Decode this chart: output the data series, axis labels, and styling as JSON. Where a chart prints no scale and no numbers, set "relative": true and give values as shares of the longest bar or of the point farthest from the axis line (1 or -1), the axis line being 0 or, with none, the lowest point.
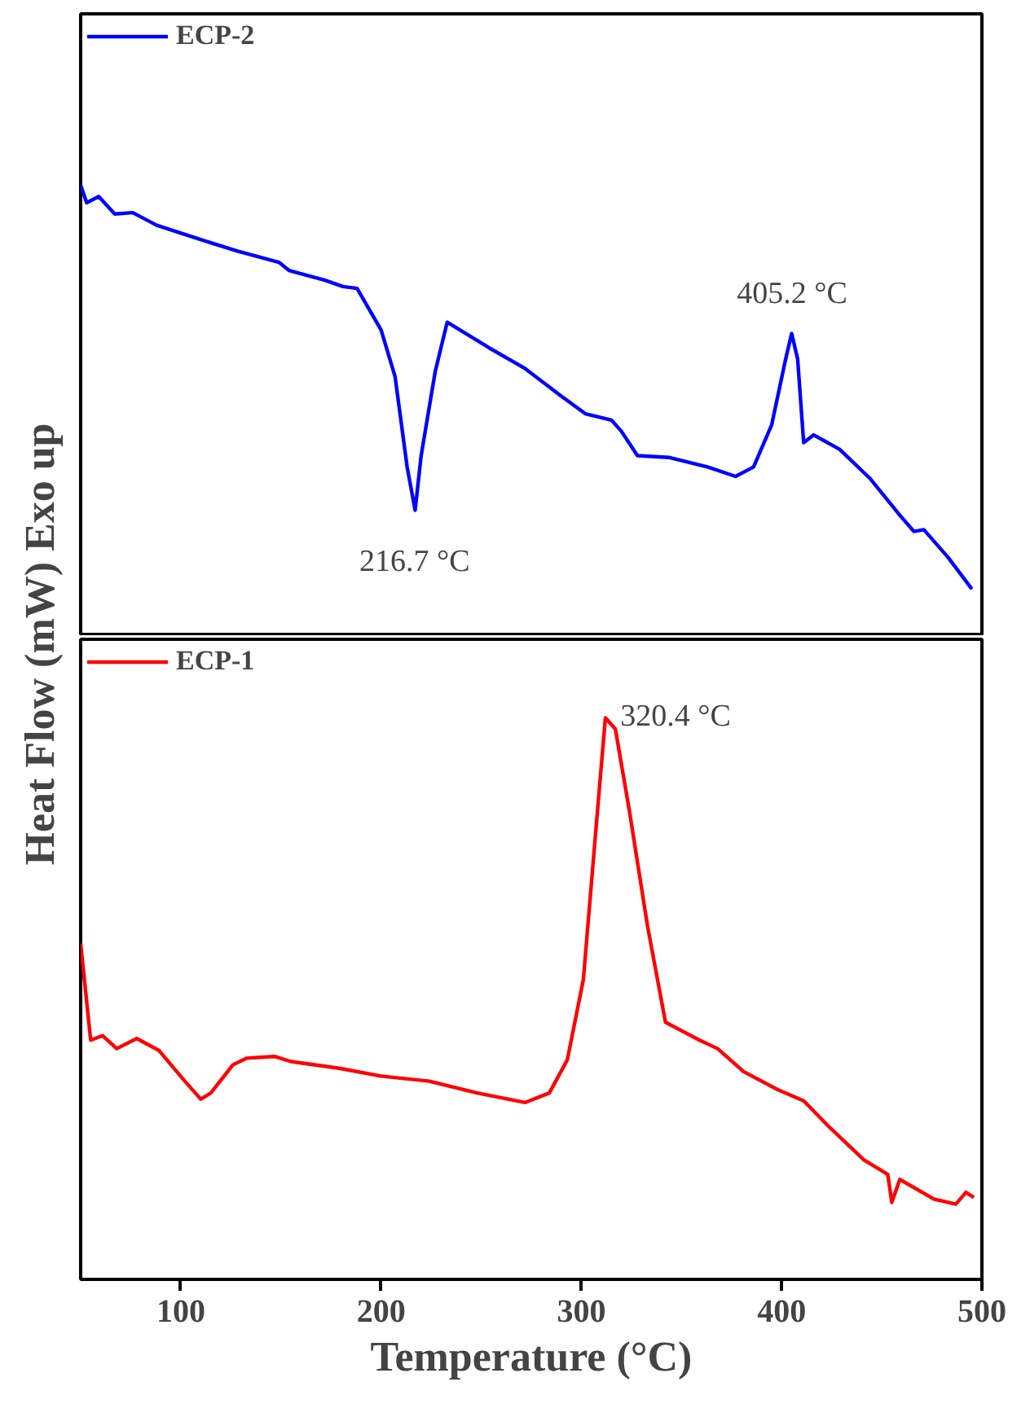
{
  "chart_data": [
    {
      "type": "line",
      "relative": true,
      "ylabel": "Heat Flow (mW) Exo up",
      "xlim": [
        50,
        500
      ],
      "xticks": [
        100,
        200,
        300,
        400,
        500
      ],
      "tick_labels": false,
      "legend": "top left",
      "grid": false,
      "series": [
        {
          "name": "ECP-2",
          "color": "#0000ff",
          "x": [
            50,
            53,
            59,
            67,
            76,
            88,
            108,
            128,
            149,
            154,
            172,
            181,
            188,
            200,
            207,
            213,
            217,
            220,
            227,
            233,
            254,
            272,
            290,
            302,
            315,
            320,
            328,
            344,
            363,
            377,
            386,
            395,
            402,
            405,
            408,
            411,
            416,
            429,
            444,
            459,
            466,
            471,
            483,
            495
          ],
          "values": [
            1.0,
            0.961,
            0.975,
            0.936,
            0.939,
            0.911,
            0.882,
            0.854,
            0.829,
            0.811,
            0.789,
            0.775,
            0.771,
            0.679,
            0.575,
            0.375,
            0.279,
            0.4,
            0.586,
            0.696,
            0.639,
            0.593,
            0.532,
            0.493,
            0.479,
            0.454,
            0.4,
            0.396,
            0.375,
            0.354,
            0.375,
            0.468,
            0.614,
            0.671,
            0.614,
            0.429,
            0.446,
            0.414,
            0.35,
            0.268,
            0.232,
            0.236,
            0.175,
            0.104
          ]
        }
      ],
      "annotations": [
        {
          "text": "216.7 °C",
          "x": 216.7,
          "y": 0.279
        },
        {
          "text": "405.2 °C",
          "x": 405.2,
          "y": 0.671
        }
      ]
    },
    {
      "type": "line",
      "relative": true,
      "xlabel": "Temperature (°C)",
      "xlim": [
        50,
        500
      ],
      "xticks": [
        100,
        200,
        300,
        400,
        500
      ],
      "tick_labels": "x",
      "legend": "top left",
      "grid": false,
      "series": [
        {
          "name": "ECP-1",
          "color": "#ff0000",
          "x": [
            50,
            55,
            61,
            68,
            78,
            89,
            102,
            110,
            115,
            126,
            133,
            147,
            155,
            179,
            200,
            224,
            248,
            272,
            284,
            293,
            301,
            307,
            312,
            317,
            324,
            333,
            342,
            359,
            368,
            381,
            398,
            411,
            423,
            441,
            453,
            455,
            459,
            476,
            487,
            492,
            496
          ],
          "values": [
            0.598,
            0.426,
            0.434,
            0.411,
            0.429,
            0.408,
            0.353,
            0.321,
            0.332,
            0.382,
            0.394,
            0.397,
            0.388,
            0.376,
            0.362,
            0.353,
            0.332,
            0.315,
            0.332,
            0.391,
            0.534,
            0.79,
            1.0,
            0.98,
            0.834,
            0.63,
            0.458,
            0.426,
            0.411,
            0.37,
            0.338,
            0.318,
            0.274,
            0.213,
            0.187,
            0.137,
            0.178,
            0.143,
            0.134,
            0.155,
            0.146
          ]
        }
      ],
      "annotations": [
        "320.4 °C"
      ]
    }
  ]
}
